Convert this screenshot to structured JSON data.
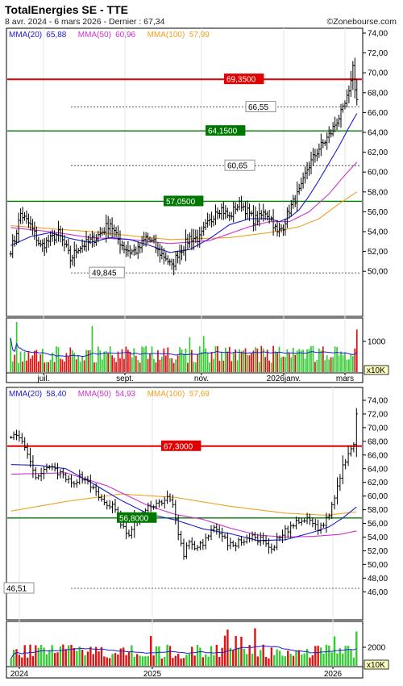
{
  "header": {
    "title": "TotalEnergies SE - TTE",
    "subtitle": "8 avr. 2024 - 6 mars 2026 - Dernier : 67,34",
    "credit": "©Zonebourse.com"
  },
  "colors": {
    "price": "#000000",
    "mma20": "#1c1cd0",
    "mma50": "#cc33cc",
    "mma100": "#f0a020",
    "resistance": "#e00000",
    "support": "#007700",
    "vol_up": "#33cc33",
    "vol_down": "#dd1111",
    "vol_avg": "#1c1cd0"
  },
  "chart_data": [
    {
      "type": "line",
      "name": "daily",
      "y_ticks": [
        "74,00",
        "72,00",
        "70,00",
        "68,00",
        "66,00",
        "64,00",
        "62,00",
        "60,00",
        "58,00",
        "56,00",
        "54,00",
        "52,00",
        "50,00"
      ],
      "ylim": [
        48.8,
        74.4
      ],
      "x_ticks": [
        "juil.",
        "sept.",
        "nov.",
        "2026janv.",
        "mars"
      ],
      "legend": [
        {
          "label": "MMA(20)",
          "value": "65,88"
        },
        {
          "label": "MMA(50)",
          "value": "60,96"
        },
        {
          "label": "MMA(100)",
          "value": "57,99"
        }
      ],
      "levels": [
        {
          "label": "69,3500",
          "value": 69.35,
          "kind": "resistance"
        },
        {
          "label": "66,55",
          "value": 66.55,
          "kind": "marker"
        },
        {
          "label": "64,1500",
          "value": 64.15,
          "kind": "support"
        },
        {
          "label": "60,65",
          "value": 60.65,
          "kind": "marker"
        },
        {
          "label": "57,0500",
          "value": 57.05,
          "kind": "support"
        },
        {
          "label": "49,845",
          "value": 49.845,
          "kind": "marker"
        }
      ],
      "price_anchors": [
        [
          0,
          52.2
        ],
        [
          2,
          53.2
        ],
        [
          5,
          55.8
        ],
        [
          10,
          54.6
        ],
        [
          15,
          52.5
        ],
        [
          20,
          53.2
        ],
        [
          24,
          53.8
        ],
        [
          28,
          52.3
        ],
        [
          30,
          51.2
        ],
        [
          34,
          52.4
        ],
        [
          38,
          52.8
        ],
        [
          42,
          53.3
        ],
        [
          46,
          54.0
        ],
        [
          50,
          54.9
        ],
        [
          53,
          53.5
        ],
        [
          57,
          52.4
        ],
        [
          60,
          52.0
        ],
        [
          64,
          52.1
        ],
        [
          68,
          53.4
        ],
        [
          72,
          52.8
        ],
        [
          74,
          52.0
        ],
        [
          78,
          51.4
        ],
        [
          81,
          50.4
        ],
        [
          84,
          51.8
        ],
        [
          87,
          52.5
        ],
        [
          90,
          53.4
        ],
        [
          95,
          53.3
        ],
        [
          98,
          54.5
        ],
        [
          101,
          55.2
        ],
        [
          103,
          56.2
        ],
        [
          106,
          56.3
        ],
        [
          110,
          55.4
        ],
        [
          113,
          56.5
        ],
        [
          116,
          56.8
        ],
        [
          119,
          56.0
        ],
        [
          122,
          55.2
        ],
        [
          125,
          55.4
        ],
        [
          128,
          56.0
        ],
        [
          131,
          55.3
        ],
        [
          134,
          53.8
        ],
        [
          137,
          54.6
        ],
        [
          140,
          56.2
        ],
        [
          143,
          57.3
        ],
        [
          146,
          58.4
        ],
        [
          149,
          60.3
        ],
        [
          152,
          61.4
        ],
        [
          155,
          62.4
        ],
        [
          158,
          63.1
        ],
        [
          161,
          64.0
        ],
        [
          164,
          65.2
        ],
        [
          167,
          66.2
        ],
        [
          169,
          67.4
        ],
        [
          170,
          67.8
        ],
        [
          171,
          69.5
        ],
        [
          172,
          70.6
        ],
        [
          173,
          68.6
        ],
        [
          174,
          67.3
        ]
      ],
      "mma20": [
        [
          0,
          52.6
        ],
        [
          10,
          53.5
        ],
        [
          20,
          53.9
        ],
        [
          30,
          53.3
        ],
        [
          40,
          52.9
        ],
        [
          50,
          53.4
        ],
        [
          60,
          53.2
        ],
        [
          70,
          52.6
        ],
        [
          80,
          51.9
        ],
        [
          90,
          52.2
        ],
        [
          100,
          53.3
        ],
        [
          110,
          54.7
        ],
        [
          120,
          55.3
        ],
        [
          130,
          55.3
        ],
        [
          135,
          55.0
        ],
        [
          140,
          55.4
        ],
        [
          145,
          56.2
        ],
        [
          150,
          57.6
        ],
        [
          155,
          59.2
        ],
        [
          160,
          60.9
        ],
        [
          165,
          62.6
        ],
        [
          170,
          64.5
        ],
        [
          174,
          65.9
        ]
      ],
      "mma50": [
        [
          0,
          54.4
        ],
        [
          20,
          54.0
        ],
        [
          40,
          53.4
        ],
        [
          60,
          53.2
        ],
        [
          80,
          52.8
        ],
        [
          100,
          53.1
        ],
        [
          110,
          53.8
        ],
        [
          120,
          54.5
        ],
        [
          130,
          55.0
        ],
        [
          140,
          55.0
        ],
        [
          150,
          56.0
        ],
        [
          160,
          57.8
        ],
        [
          168,
          59.7
        ],
        [
          174,
          61.0
        ]
      ],
      "mma100": [
        [
          0,
          54.6
        ],
        [
          40,
          54.0
        ],
        [
          80,
          53.2
        ],
        [
          110,
          53.4
        ],
        [
          130,
          53.9
        ],
        [
          145,
          54.5
        ],
        [
          155,
          55.3
        ],
        [
          165,
          56.8
        ],
        [
          174,
          58.0
        ]
      ],
      "volume": {
        "tick": "1000",
        "unit": "x10K",
        "max": 2000
      }
    },
    {
      "type": "line",
      "name": "weekly",
      "y_ticks": [
        "74,00",
        "72,00",
        "70,00",
        "68,00",
        "66,00",
        "64,00",
        "62,00",
        "60,00",
        "58,00",
        "56,00",
        "54,00",
        "52,00",
        "50,00",
        "48,00",
        "46,00"
      ],
      "ylim": [
        45.6,
        74.6
      ],
      "x_ticks": [
        "2024",
        "2025",
        "2026"
      ],
      "legend": [
        {
          "label": "MMA(20)",
          "value": "58,40"
        },
        {
          "label": "MMA(50)",
          "value": "54,93"
        },
        {
          "label": "MMA(100)",
          "value": "57,69"
        }
      ],
      "levels": [
        {
          "label": "67,3000",
          "value": 67.3,
          "kind": "resistance"
        },
        {
          "label": "56,8000",
          "value": 56.8,
          "kind": "support"
        },
        {
          "label": "46,51",
          "value": 46.51,
          "kind": "marker"
        }
      ],
      "price_anchors": [
        [
          0,
          69.0
        ],
        [
          2,
          68.6
        ],
        [
          4,
          67.6
        ],
        [
          6,
          66.0
        ],
        [
          8,
          63.5
        ],
        [
          10,
          62.5
        ],
        [
          13,
          64.2
        ],
        [
          16,
          63.8
        ],
        [
          19,
          62.8
        ],
        [
          22,
          61.8
        ],
        [
          25,
          62.8
        ],
        [
          28,
          62.3
        ],
        [
          31,
          60.3
        ],
        [
          34,
          59.0
        ],
        [
          37,
          58.5
        ],
        [
          39,
          56.8
        ],
        [
          41,
          55.3
        ],
        [
          43,
          54.0
        ],
        [
          45,
          56.3
        ],
        [
          48,
          57.3
        ],
        [
          51,
          58.7
        ],
        [
          54,
          59.0
        ],
        [
          57,
          59.8
        ],
        [
          59,
          58.5
        ],
        [
          61,
          54.3
        ],
        [
          63,
          51.5
        ],
        [
          65,
          53.4
        ],
        [
          67,
          52.6
        ],
        [
          70,
          52.8
        ],
        [
          73,
          54.7
        ],
        [
          75,
          55.5
        ],
        [
          77,
          54.0
        ],
        [
          79,
          53.2
        ],
        [
          81,
          52.7
        ],
        [
          83,
          53.2
        ],
        [
          86,
          53.8
        ],
        [
          89,
          53.9
        ],
        [
          92,
          53.4
        ],
        [
          95,
          51.8
        ],
        [
          97,
          53.5
        ],
        [
          100,
          54.8
        ],
        [
          103,
          55.8
        ],
        [
          106,
          56.4
        ],
        [
          109,
          56.5
        ],
        [
          112,
          55.2
        ],
        [
          115,
          56.5
        ],
        [
          117,
          58.5
        ],
        [
          119,
          61.3
        ],
        [
          121,
          64.5
        ],
        [
          123,
          66.3
        ],
        [
          125,
          67.8
        ],
        [
          126,
          72.0
        ]
      ],
      "mma20": [
        [
          0,
          64.6
        ],
        [
          10,
          64.5
        ],
        [
          20,
          64.0
        ],
        [
          30,
          61.8
        ],
        [
          40,
          59.4
        ],
        [
          50,
          57.4
        ],
        [
          60,
          56.5
        ],
        [
          70,
          55.2
        ],
        [
          80,
          54.5
        ],
        [
          90,
          53.5
        ],
        [
          100,
          53.6
        ],
        [
          110,
          54.7
        ],
        [
          116,
          55.5
        ],
        [
          121,
          56.8
        ],
        [
          126,
          58.4
        ]
      ],
      "mma50": [
        [
          0,
          63.2
        ],
        [
          20,
          63.4
        ],
        [
          35,
          61.5
        ],
        [
          50,
          58.6
        ],
        [
          60,
          57.3
        ],
        [
          70,
          56.6
        ],
        [
          80,
          55.3
        ],
        [
          90,
          54.3
        ],
        [
          100,
          54.0
        ],
        [
          110,
          54.1
        ],
        [
          120,
          54.4
        ],
        [
          126,
          54.9
        ]
      ],
      "mma100": [
        [
          0,
          57.8
        ],
        [
          20,
          59.2
        ],
        [
          40,
          60.3
        ],
        [
          60,
          59.8
        ],
        [
          80,
          58.5
        ],
        [
          100,
          57.5
        ],
        [
          115,
          57.2
        ],
        [
          126,
          57.7
        ]
      ],
      "volume": {
        "tick": "2000",
        "unit": "x10K",
        "max": 3600
      }
    }
  ]
}
